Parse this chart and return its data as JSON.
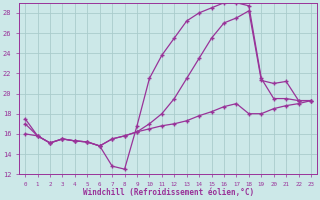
{
  "xlabel": "Windchill (Refroidissement éolien,°C)",
  "xlim": [
    -0.5,
    23.5
  ],
  "ylim": [
    12,
    29
  ],
  "xticks": [
    0,
    1,
    2,
    3,
    4,
    5,
    6,
    7,
    8,
    9,
    10,
    11,
    12,
    13,
    14,
    15,
    16,
    17,
    18,
    19,
    20,
    21,
    22,
    23
  ],
  "yticks": [
    12,
    14,
    16,
    18,
    20,
    22,
    24,
    26,
    28
  ],
  "bg_color": "#cce8e8",
  "grid_color": "#aacccc",
  "line_color": "#993399",
  "line1_x": [
    0,
    1,
    2,
    3,
    4,
    5,
    6,
    7,
    8,
    9,
    10,
    11,
    12,
    13,
    14,
    15,
    16,
    17,
    18,
    19,
    20,
    21,
    22,
    23
  ],
  "line1_y": [
    17.5,
    15.8,
    15.1,
    15.5,
    15.3,
    15.2,
    14.8,
    12.8,
    12.5,
    16.8,
    21.5,
    23.8,
    25.5,
    27.2,
    28.0,
    28.5,
    29.0,
    29.0,
    28.7,
    21.5,
    19.5,
    19.5,
    19.3,
    19.3
  ],
  "line2_x": [
    0,
    1,
    2,
    3,
    4,
    5,
    6,
    7,
    8,
    9,
    10,
    11,
    12,
    13,
    14,
    15,
    16,
    17,
    18,
    19,
    20,
    21,
    22,
    23
  ],
  "line2_y": [
    17.0,
    15.8,
    15.1,
    15.5,
    15.3,
    15.2,
    14.8,
    15.5,
    15.8,
    16.2,
    17.0,
    18.0,
    19.5,
    21.5,
    23.5,
    25.5,
    27.0,
    27.5,
    28.2,
    21.3,
    21.0,
    21.2,
    19.3,
    19.3
  ],
  "line3_x": [
    0,
    1,
    2,
    3,
    4,
    5,
    6,
    7,
    8,
    9,
    10,
    11,
    12,
    13,
    14,
    15,
    16,
    17,
    18,
    19,
    20,
    21,
    22,
    23
  ],
  "line3_y": [
    16.0,
    15.8,
    15.1,
    15.5,
    15.3,
    15.2,
    14.8,
    15.5,
    15.8,
    16.2,
    16.5,
    16.8,
    17.0,
    17.3,
    17.8,
    18.2,
    18.7,
    19.0,
    18.0,
    18.0,
    18.5,
    18.8,
    19.0,
    19.3
  ]
}
